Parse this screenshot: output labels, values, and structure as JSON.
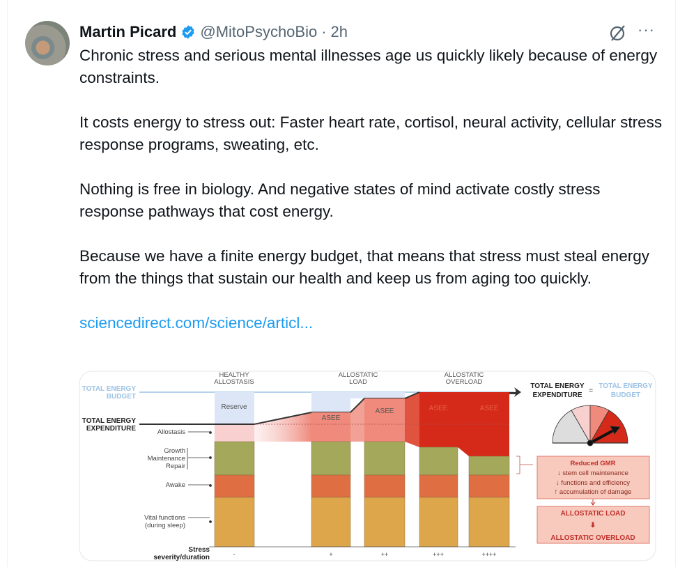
{
  "tweet": {
    "author_name": "Martin Picard",
    "handle": "@MitoPsychoBio",
    "separator": "·",
    "time": "2h",
    "more_label": "···",
    "paragraphs": [
      "Chronic stress and serious mental illnesses age us quickly likely because of energy constraints.",
      "It costs energy to stress out: Faster heart rate, cortisol, neural activity, cellular stress response programs, sweating, etc.",
      "Nothing is free in biology. And negative states of mind activate costly stress response pathways that cost energy.",
      "Because we have a finite energy budget, that means that stress must steal energy from the things that sustain our health and keep us from aging too quickly."
    ],
    "link": "sciencedirect.com/science/articl..."
  },
  "diagram": {
    "budget_label": [
      "TOTAL ENERGY",
      "BUDGET"
    ],
    "expenditure_label": [
      "TOTAL ENERGY",
      "EXPENDITURE"
    ],
    "stage_headers": [
      [
        "HEALTHY",
        "ALLOSTASIS"
      ],
      [
        "ALLOSTATIC",
        "LOAD"
      ],
      [
        "ALLOSTATIC",
        "OVERLOAD"
      ]
    ],
    "reserve": "Reserve",
    "asee": "ASEE",
    "layers": {
      "allostasis": "Allostasis",
      "gmr": [
        "Growth",
        "Maintenance",
        "Repair"
      ],
      "awake": "Awake",
      "vital": [
        "Vital functions",
        "(during sleep)"
      ]
    },
    "stress_label": [
      "Stress",
      "severity/duration"
    ],
    "stress_levels": [
      "-",
      "+",
      "++",
      "+++",
      "++++"
    ],
    "equation": {
      "left": [
        "TOTAL ENERGY",
        "EXPENDITURE"
      ],
      "equals": "=",
      "right": [
        "TOTAL ENERGY",
        "BUDGET"
      ]
    },
    "gmr_box": {
      "title": "Reduced GMR",
      "lines": [
        "↓ stem cell maintenance",
        "↓ functions and efficiency",
        "↑ accumulation of damage"
      ]
    },
    "outcome_box": {
      "line1": "ALLOSTATIC LOAD",
      "arrow": "⬇",
      "line2": "ALLOSTATIC OVERLOAD"
    },
    "colors": {
      "budget_blue": "#9cc3e6",
      "reserve": "#dce6f7",
      "allostasis": "#f8d0cf",
      "asee": "#ef8a7c",
      "overload": "#d52a1a",
      "green": "#a3a85a",
      "orange": "#df6e42",
      "yellow": "#dea64b"
    }
  },
  "accent": "#1d9bf0"
}
